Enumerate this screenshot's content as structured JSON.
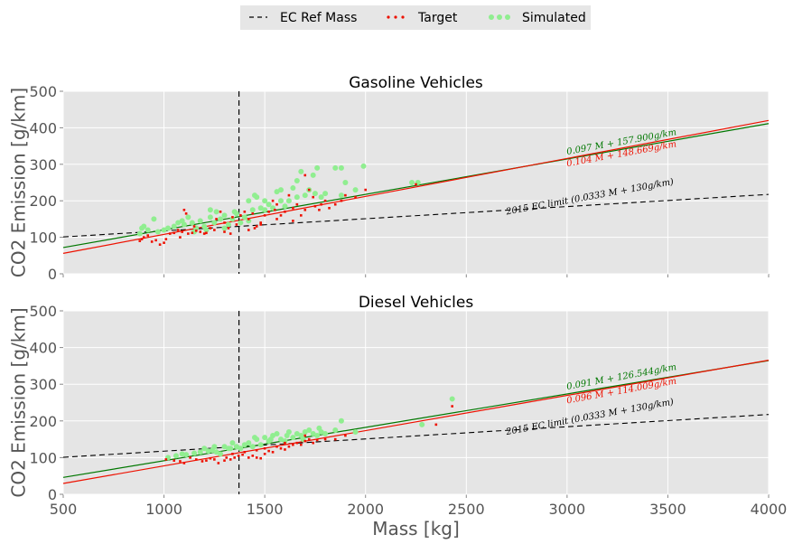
{
  "chart_data": [
    {
      "type": "scatter",
      "title": "Gasoline Vehicles",
      "xlabel": "",
      "ylabel": "CO2 Emission [g/km]",
      "xlim": [
        500,
        4000
      ],
      "ylim": [
        0,
        500
      ],
      "xticks": [],
      "yticks": [
        "0",
        "100",
        "200",
        "300",
        "400",
        "500"
      ],
      "ref_mass": 1372,
      "limit_line": {
        "slope": 0.0333,
        "intercept": 84.3,
        "label": "2015 EC limit (0.0333 M + 130g/km)",
        "color": "#000000"
      },
      "fits": [
        {
          "slope": 0.097,
          "intercept": 23.5,
          "label": "0.097 M + 157.900g/km",
          "color": "#007700"
        },
        {
          "slope": 0.104,
          "intercept": 4.0,
          "label": "0.104 M + 148.669g/km",
          "color": "#ee1100"
        }
      ],
      "series": [
        {
          "name": "Target",
          "color": "#ee1100",
          "points": [
            [
              880,
              90
            ],
            [
              890,
              95
            ],
            [
              900,
              100
            ],
            [
              920,
              105
            ],
            [
              940,
              88
            ],
            [
              960,
              92
            ],
            [
              980,
              80
            ],
            [
              1000,
              85
            ],
            [
              1010,
              95
            ],
            [
              1030,
              110
            ],
            [
              1050,
              112
            ],
            [
              1070,
              120
            ],
            [
              1090,
              115
            ],
            [
              1100,
              175
            ],
            [
              1110,
              165
            ],
            [
              1120,
              110
            ],
            [
              1140,
              112
            ],
            [
              1160,
              118
            ],
            [
              1180,
              115
            ],
            [
              1200,
              110
            ],
            [
              1210,
              112
            ],
            [
              1230,
              125
            ],
            [
              1250,
              120
            ],
            [
              1260,
              150
            ],
            [
              1280,
              170
            ],
            [
              1300,
              140
            ],
            [
              1320,
              125
            ],
            [
              1330,
              110
            ],
            [
              1340,
              155
            ],
            [
              1360,
              135
            ],
            [
              1380,
              160
            ],
            [
              1400,
              170
            ],
            [
              1420,
              150
            ],
            [
              1440,
              165
            ],
            [
              1450,
              125
            ],
            [
              1460,
              130
            ],
            [
              1480,
              140
            ],
            [
              1500,
              160
            ],
            [
              1520,
              170
            ],
            [
              1540,
              200
            ],
            [
              1550,
              175
            ],
            [
              1560,
              150
            ],
            [
              1580,
              160
            ],
            [
              1600,
              170
            ],
            [
              1620,
              215
            ],
            [
              1640,
              180
            ],
            [
              1660,
              190
            ],
            [
              1680,
              160
            ],
            [
              1700,
              270
            ],
            [
              1720,
              230
            ],
            [
              1740,
              210
            ],
            [
              1750,
              185
            ],
            [
              1780,
              190
            ],
            [
              1800,
              200
            ],
            [
              1820,
              180
            ],
            [
              1850,
              190
            ],
            [
              1880,
              200
            ],
            [
              1900,
              215
            ],
            [
              1950,
              210
            ],
            [
              2000,
              230
            ],
            [
              2250,
              245
            ],
            [
              1300,
              115
            ],
            [
              1150,
              130
            ],
            [
              1080,
              100
            ],
            [
              1420,
              120
            ],
            [
              1480,
              135
            ],
            [
              1560,
              190
            ],
            [
              1640,
              145
            ],
            [
              1700,
              175
            ],
            [
              1770,
              175
            ]
          ]
        },
        {
          "name": "Simulated",
          "color": "#90ee90",
          "points": [
            [
              880,
              110
            ],
            [
              890,
              125
            ],
            [
              900,
              130
            ],
            [
              920,
              120
            ],
            [
              950,
              150
            ],
            [
              970,
              115
            ],
            [
              1000,
              120
            ],
            [
              1020,
              125
            ],
            [
              1050,
              130
            ],
            [
              1070,
              140
            ],
            [
              1090,
              145
            ],
            [
              1100,
              135
            ],
            [
              1120,
              155
            ],
            [
              1140,
              140
            ],
            [
              1160,
              125
            ],
            [
              1180,
              145
            ],
            [
              1200,
              130
            ],
            [
              1210,
              120
            ],
            [
              1230,
              155
            ],
            [
              1250,
              140
            ],
            [
              1260,
              170
            ],
            [
              1280,
              150
            ],
            [
              1300,
              160
            ],
            [
              1320,
              135
            ],
            [
              1340,
              150
            ],
            [
              1360,
              165
            ],
            [
              1380,
              140
            ],
            [
              1400,
              155
            ],
            [
              1420,
              145
            ],
            [
              1440,
              175
            ],
            [
              1450,
              215
            ],
            [
              1460,
              210
            ],
            [
              1480,
              180
            ],
            [
              1500,
              175
            ],
            [
              1520,
              190
            ],
            [
              1540,
              180
            ],
            [
              1560,
              225
            ],
            [
              1580,
              200
            ],
            [
              1600,
              185
            ],
            [
              1620,
              200
            ],
            [
              1640,
              235
            ],
            [
              1660,
              210
            ],
            [
              1680,
              280
            ],
            [
              1700,
              215
            ],
            [
              1720,
              230
            ],
            [
              1740,
              270
            ],
            [
              1760,
              290
            ],
            [
              1780,
              210
            ],
            [
              1800,
              220
            ],
            [
              1850,
              290
            ],
            [
              1880,
              290
            ],
            [
              1900,
              250
            ],
            [
              1950,
              230
            ],
            [
              1990,
              295
            ],
            [
              2230,
              250
            ],
            [
              2260,
              250
            ],
            [
              1150,
              115
            ],
            [
              1230,
              175
            ],
            [
              1300,
              125
            ],
            [
              1350,
              170
            ],
            [
              1420,
              200
            ],
            [
              1500,
              200
            ],
            [
              1580,
              230
            ],
            [
              1660,
              255
            ],
            [
              1750,
              220
            ],
            [
              1880,
              215
            ]
          ]
        }
      ]
    },
    {
      "type": "scatter",
      "title": "Diesel Vehicles",
      "xlabel": "Mass [kg]",
      "ylabel": "CO2 Emission [g/km]",
      "xlim": [
        500,
        4000
      ],
      "ylim": [
        0,
        500
      ],
      "xticks": [
        "500",
        "1000",
        "1500",
        "2000",
        "2500",
        "3000",
        "3500",
        "4000"
      ],
      "yticks": [
        "0",
        "100",
        "200",
        "300",
        "400",
        "500"
      ],
      "ref_mass": 1372,
      "limit_line": {
        "slope": 0.0333,
        "intercept": 84.3,
        "label": "2015 EC limit (0.0333 M + 130g/km)",
        "color": "#000000"
      },
      "fits": [
        {
          "slope": 0.091,
          "intercept": 0.5,
          "label": "0.091 M + 126.544g/km",
          "color": "#007700"
        },
        {
          "slope": 0.096,
          "intercept": -18.5,
          "label": "0.096 M + 114.009g/km",
          "color": "#ee1100"
        }
      ],
      "series": [
        {
          "name": "Target",
          "color": "#ee1100",
          "points": [
            [
              1010,
              95
            ],
            [
              1050,
              92
            ],
            [
              1080,
              90
            ],
            [
              1100,
              85
            ],
            [
              1130,
              100
            ],
            [
              1160,
              95
            ],
            [
              1190,
              90
            ],
            [
              1210,
              92
            ],
            [
              1230,
              98
            ],
            [
              1250,
              95
            ],
            [
              1270,
              85
            ],
            [
              1300,
              92
            ],
            [
              1310,
              100
            ],
            [
              1330,
              95
            ],
            [
              1350,
              100
            ],
            [
              1370,
              105
            ],
            [
              1390,
              108
            ],
            [
              1400,
              115
            ],
            [
              1420,
              100
            ],
            [
              1440,
              105
            ],
            [
              1460,
              100
            ],
            [
              1480,
              98
            ],
            [
              1500,
              110
            ],
            [
              1520,
              118
            ],
            [
              1540,
              115
            ],
            [
              1560,
              130
            ],
            [
              1580,
              125
            ],
            [
              1600,
              122
            ],
            [
              1620,
              130
            ],
            [
              1640,
              135
            ],
            [
              1660,
              140
            ],
            [
              1680,
              135
            ],
            [
              1700,
              145
            ],
            [
              1720,
              150
            ],
            [
              1740,
              140
            ],
            [
              1760,
              148
            ],
            [
              1800,
              150
            ],
            [
              1850,
              150
            ],
            [
              1900,
              160
            ],
            [
              2350,
              190
            ],
            [
              2430,
              240
            ],
            [
              1340,
              110
            ],
            [
              1460,
              120
            ],
            [
              1500,
              125
            ],
            [
              1600,
              140
            ],
            [
              1700,
              160
            ]
          ]
        },
        {
          "name": "Simulated",
          "color": "#90ee90",
          "points": [
            [
              1020,
              100
            ],
            [
              1060,
              105
            ],
            [
              1090,
              110
            ],
            [
              1110,
              108
            ],
            [
              1150,
              112
            ],
            [
              1180,
              115
            ],
            [
              1200,
              125
            ],
            [
              1220,
              118
            ],
            [
              1240,
              120
            ],
            [
              1260,
              115
            ],
            [
              1280,
              110
            ],
            [
              1300,
              130
            ],
            [
              1320,
              125
            ],
            [
              1340,
              140
            ],
            [
              1360,
              130
            ],
            [
              1380,
              125
            ],
            [
              1400,
              135
            ],
            [
              1420,
              140
            ],
            [
              1440,
              130
            ],
            [
              1460,
              150
            ],
            [
              1480,
              135
            ],
            [
              1500,
              155
            ],
            [
              1520,
              145
            ],
            [
              1540,
              160
            ],
            [
              1560,
              165
            ],
            [
              1580,
              150
            ],
            [
              1600,
              145
            ],
            [
              1620,
              170
            ],
            [
              1640,
              155
            ],
            [
              1660,
              165
            ],
            [
              1680,
              160
            ],
            [
              1700,
              170
            ],
            [
              1720,
              175
            ],
            [
              1740,
              165
            ],
            [
              1760,
              160
            ],
            [
              1780,
              170
            ],
            [
              1800,
              165
            ],
            [
              1850,
              175
            ],
            [
              1880,
              200
            ],
            [
              1950,
              170
            ],
            [
              2280,
              190
            ],
            [
              2430,
              260
            ],
            [
              1250,
              130
            ],
            [
              1330,
              125
            ],
            [
              1450,
              155
            ],
            [
              1530,
              150
            ],
            [
              1610,
              160
            ],
            [
              1690,
              150
            ],
            [
              1770,
              180
            ]
          ]
        }
      ]
    }
  ],
  "legend": {
    "placement": "top-center",
    "items": [
      {
        "label": "EC Ref Mass"
      },
      {
        "label": "Target"
      },
      {
        "label": "Simulated"
      }
    ]
  }
}
